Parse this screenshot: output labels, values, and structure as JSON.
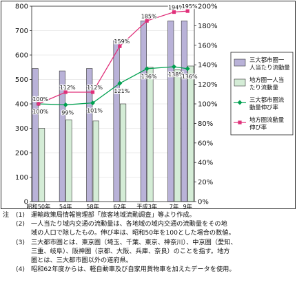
{
  "chart_data": {
    "type": "bar",
    "categories": [
      "昭和50年",
      "54年",
      "58年",
      "62年",
      "平成3年",
      "7年",
      "9年"
    ],
    "x_positions": [
      0,
      4,
      8,
      12,
      16,
      20,
      22
    ],
    "series": [
      {
        "name": "三大都市圏一人当たり流動量",
        "type": "bar",
        "axis": "left",
        "color": "#b9b2d8",
        "values": [
          545,
          535,
          545,
          660,
          740,
          740,
          740
        ]
      },
      {
        "name": "地方圏一人当たり流動量",
        "type": "bar",
        "axis": "left",
        "color": "#d4ecd6",
        "values": [
          300,
          335,
          330,
          400,
          550,
          540,
          555
        ]
      },
      {
        "name": "三大都市圏流動量伸び率",
        "type": "line",
        "axis": "right",
        "color": "#00a050",
        "marker": "diamond",
        "values": [
          100,
          99,
          101,
          121,
          136,
          138,
          136
        ],
        "labels": [
          "100%",
          "99%",
          "101%",
          "121%",
          "136%",
          "138%",
          "136%"
        ]
      },
      {
        "name": "地方圏流動量伸び率",
        "type": "line",
        "axis": "right",
        "color": "#e0307a",
        "marker": "square",
        "values": [
          100,
          112,
          112,
          159,
          185,
          194,
          195
        ],
        "labels": [
          "100%",
          "112%",
          "112%",
          "159%",
          "185%",
          "194%",
          "195%"
        ]
      }
    ],
    "y_left": {
      "min": 0,
      "max": 800,
      "ticks": [
        "0",
        "100",
        "200",
        "300",
        "400",
        "500",
        "600",
        "700",
        "800"
      ]
    },
    "y_right": {
      "min": 0,
      "max": 200,
      "ticks": [
        "0%",
        "20%",
        "40%",
        "60%",
        "80%",
        "100%",
        "120%",
        "140%",
        "160%",
        "180%",
        "200%"
      ]
    },
    "legend_position": "right",
    "legend": [
      {
        "type": "bar",
        "color": "#b9b2d8",
        "lines": [
          "三大都市圏一",
          "人当たり流動量"
        ]
      },
      {
        "type": "bar",
        "color": "#d4ecd6",
        "lines": [
          "地方圏一人当",
          "たり流動量"
        ]
      },
      {
        "type": "line",
        "color": "#00a050",
        "marker": "diamond",
        "lines": [
          "三大都市圏流",
          "動量伸び率"
        ]
      },
      {
        "type": "line",
        "color": "#e0307a",
        "marker": "square",
        "lines": [
          "地方圏流動量",
          "伸び率"
        ]
      }
    ]
  },
  "notes": {
    "head": "注",
    "items": [
      {
        "num": "(1)",
        "text": "運輸政策局情報管理部「旅客地域流動調査」等より作成。",
        "cont": []
      },
      {
        "num": "(2)",
        "text": "一人当たり域内交通の流動量は、各地域の域内交通の流動量をその地",
        "cont": [
          "域の人口で除したもの。伸び率は、昭和50年を100とした場合の数値。"
        ]
      },
      {
        "num": "(3)",
        "text": "三大都市圏とは、東京圏（埼玉、千葉、東京、神奈川）、中京圏（愛知、",
        "cont": [
          "三重、岐阜）、阪神圏（京都、大阪、兵庫、奈良）のことを指す。地方",
          "圏とは、三大都市圏以外の道府県。"
        ]
      },
      {
        "num": "(4)",
        "text": "昭和62年度からは、軽自動車及び自家用貨物車を加えたデータを使用。",
        "cont": []
      }
    ]
  }
}
